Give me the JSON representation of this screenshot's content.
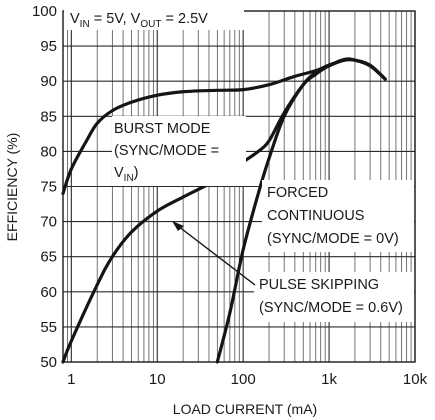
{
  "chart_data": {
    "type": "line",
    "xlabel": "LOAD CURRENT (mA)",
    "ylabel": "EFFICIENCY (%)",
    "x_scale": "log",
    "xlim": [
      0.8,
      10000
    ],
    "ylim": [
      50,
      100
    ],
    "x_ticks": [
      1,
      10,
      100,
      1000,
      10000
    ],
    "x_tick_labels": [
      "1",
      "10",
      "100",
      "1k",
      "10k"
    ],
    "y_ticks": [
      50,
      55,
      60,
      65,
      70,
      75,
      80,
      85,
      90,
      95,
      100
    ],
    "grid": true,
    "conditions": {
      "vin": "5V",
      "vout": "2.5V"
    },
    "series": [
      {
        "name": "BURST MODE (SYNC/MODE = VIN)",
        "x": [
          0.8,
          1,
          1.5,
          2,
          3,
          5,
          10,
          20,
          50,
          100,
          200,
          400,
          700,
          1000,
          1500,
          2000,
          3000,
          4500
        ],
        "y": [
          74,
          77.5,
          81.5,
          84,
          85.8,
          87,
          88,
          88.5,
          88.7,
          88.8,
          89.5,
          90.7,
          91.5,
          92.3,
          93,
          93,
          92.3,
          90.3
        ]
      },
      {
        "name": "PULSE SKIPPING (SYNC/MODE = 0.6V)",
        "x": [
          0.8,
          1,
          2,
          3,
          5,
          10,
          20,
          50,
          100,
          150,
          200,
          300,
          500,
          700,
          1000,
          1500,
          2000,
          3000,
          4500
        ],
        "y": [
          50,
          53,
          61,
          65,
          68.5,
          71.5,
          73.5,
          76,
          78.5,
          80,
          81.5,
          85.5,
          89.5,
          91,
          92.2,
          93.1,
          93,
          92.2,
          90.3
        ]
      },
      {
        "name": "FORCED CONTINUOUS (SYNC/MODE = 0V)",
        "x": [
          50,
          70,
          100,
          150,
          200,
          300,
          500,
          700,
          1000,
          1500,
          2000,
          3000,
          4500
        ],
        "y": [
          50,
          57,
          66,
          74,
          79,
          85,
          89.5,
          91.2,
          92.2,
          93,
          93,
          92.2,
          90.3
        ]
      }
    ]
  },
  "annotations": {
    "conditions_prefix_vin": "V",
    "conditions_sub_vin": "IN",
    "conditions_mid": " = 5V, V",
    "conditions_sub_vout": "OUT",
    "conditions_suffix": " = 2.5V",
    "burst_line1": "BURST MODE",
    "burst_line2": "(SYNC/MODE =",
    "burst_line3_prefix": "V",
    "burst_line3_sub": "IN",
    "burst_line3_suffix": ")",
    "forced_line1": "FORCED",
    "forced_line2": "CONTINUOUS",
    "forced_line3": "(SYNC/MODE = 0V)",
    "pulse_line1": "PULSE SKIPPING",
    "pulse_line2": "(SYNC/MODE = 0.6V)"
  },
  "colors": {
    "curve": "#151515",
    "grid": "#2a2a2a",
    "background": "#ffffff"
  }
}
